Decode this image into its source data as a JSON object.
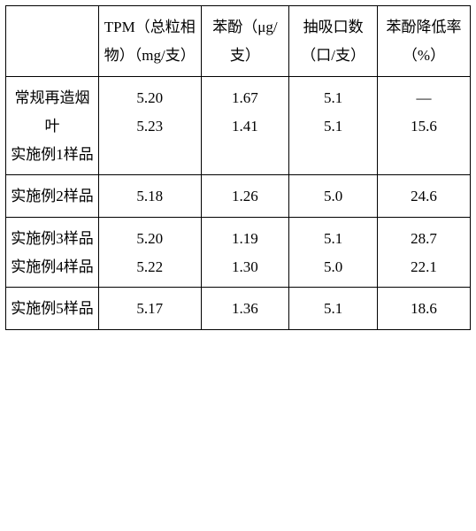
{
  "table": {
    "columns": [
      "",
      "TPM（总粒相物）（mg/支）",
      "苯酚（μg/支）",
      "抽吸口数（口/支）",
      "苯酚降低率（%）"
    ],
    "groups": [
      {
        "rows": [
          {
            "label": "常规再造烟叶",
            "tpm": "5.20",
            "phenol": "1.67",
            "puffs": "5.1",
            "reduction": "—"
          },
          {
            "label": "实施例1样品",
            "tpm": "5.23",
            "phenol": "1.41",
            "puffs": "5.1",
            "reduction": "15.6"
          }
        ]
      },
      {
        "rows": [
          {
            "label": "实施例2样品",
            "tpm": "5.18",
            "phenol": "1.26",
            "puffs": "5.0",
            "reduction": "24.6"
          }
        ]
      },
      {
        "rows": [
          {
            "label": "实施例3样品",
            "tpm": "5.20",
            "phenol": "1.19",
            "puffs": "5.1",
            "reduction": "28.7"
          },
          {
            "label": "实施例4样品",
            "tpm": "5.22",
            "phenol": "1.30",
            "puffs": "5.0",
            "reduction": "22.1"
          }
        ]
      },
      {
        "rows": [
          {
            "label": "实施例5样品",
            "tpm": "5.17",
            "phenol": "1.36",
            "puffs": "5.1",
            "reduction": "18.6"
          }
        ]
      }
    ],
    "style": {
      "border_color": "#000000",
      "background_color": "#ffffff",
      "font_family": "SimSun",
      "font_size_pt": 12,
      "text_color": "#000000",
      "col_widths_pct": [
        20,
        22,
        19,
        19,
        20
      ],
      "line_height": 1.9
    }
  }
}
